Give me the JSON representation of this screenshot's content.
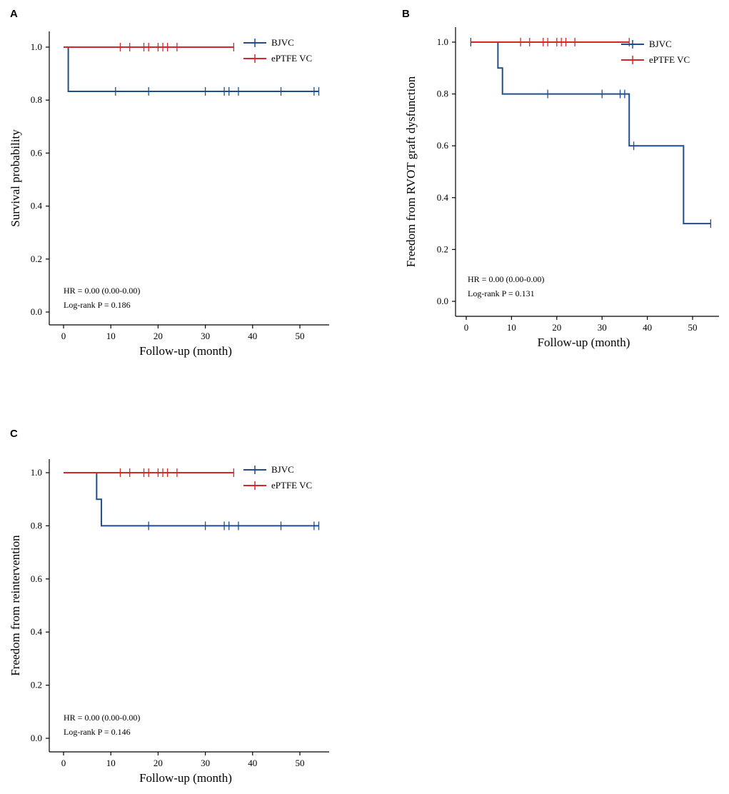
{
  "chart_data": [
    {
      "type": "line",
      "panel": "A",
      "xlabel": "Follow-up (month)",
      "ylabel": "Survival probability",
      "xlim": [
        0,
        55
      ],
      "ylim": [
        0,
        1
      ],
      "xticks": [
        0,
        10,
        20,
        30,
        40,
        50
      ],
      "yticks": [
        0.0,
        0.2,
        0.4,
        0.6,
        0.8,
        1.0
      ],
      "legend": [
        "BJVC",
        "ePTFE VC"
      ],
      "annotations": [
        "HR = 0.00 (0.00-0.00)",
        "Log-rank P = 0.186"
      ],
      "series": [
        {
          "name": "BJVC",
          "color": "#1f4e8c",
          "step": [
            [
              0,
              1.0
            ],
            [
              1,
              1.0
            ],
            [
              1,
              0.833
            ],
            [
              54,
              0.833
            ]
          ],
          "censor": [
            [
              11,
              0.833
            ],
            [
              18,
              0.833
            ],
            [
              30,
              0.833
            ],
            [
              34,
              0.833
            ],
            [
              35,
              0.833
            ],
            [
              37,
              0.833
            ],
            [
              46,
              0.833
            ],
            [
              53,
              0.833
            ],
            [
              54,
              0.833
            ]
          ]
        },
        {
          "name": "ePTFE VC",
          "color": "#d62728",
          "step": [
            [
              0,
              1.0
            ],
            [
              36,
              1.0
            ]
          ],
          "censor": [
            [
              12,
              1.0
            ],
            [
              14,
              1.0
            ],
            [
              17,
              1.0
            ],
            [
              18,
              1.0
            ],
            [
              20,
              1.0
            ],
            [
              21,
              1.0
            ],
            [
              22,
              1.0
            ],
            [
              24,
              1.0
            ],
            [
              36,
              1.0
            ]
          ]
        }
      ]
    },
    {
      "type": "line",
      "panel": "B",
      "xlabel": "Follow-up (month)",
      "ylabel": "Freedom from RVOT graft dysfunction",
      "xlim": [
        0,
        55
      ],
      "ylim": [
        0,
        1
      ],
      "xticks": [
        0,
        10,
        20,
        30,
        40,
        50
      ],
      "yticks": [
        0.0,
        0.2,
        0.4,
        0.6,
        0.8,
        1.0
      ],
      "legend": [
        "BJVC",
        "ePTFE VC"
      ],
      "annotations": [
        "HR = 0.00 (0.00-0.00)",
        "Log-rank P = 0.131"
      ],
      "series": [
        {
          "name": "BJVC",
          "color": "#1f4e8c",
          "step": [
            [
              1,
              1.0
            ],
            [
              7,
              1.0
            ],
            [
              7,
              0.9
            ],
            [
              8,
              0.9
            ],
            [
              8,
              0.8
            ],
            [
              36,
              0.8
            ],
            [
              36,
              0.6
            ],
            [
              48,
              0.6
            ],
            [
              48,
              0.3
            ],
            [
              54,
              0.3
            ]
          ],
          "censor": [
            [
              1,
              1.0
            ],
            [
              18,
              0.8
            ],
            [
              30,
              0.8
            ],
            [
              34,
              0.8
            ],
            [
              35,
              0.8
            ],
            [
              37,
              0.6
            ],
            [
              54,
              0.3
            ]
          ]
        },
        {
          "name": "ePTFE VC",
          "color": "#d62728",
          "step": [
            [
              1,
              1.0
            ],
            [
              36,
              1.0
            ]
          ],
          "censor": [
            [
              12,
              1.0
            ],
            [
              14,
              1.0
            ],
            [
              17,
              1.0
            ],
            [
              18,
              1.0
            ],
            [
              20,
              1.0
            ],
            [
              21,
              1.0
            ],
            [
              22,
              1.0
            ],
            [
              24,
              1.0
            ],
            [
              36,
              1.0
            ]
          ]
        }
      ]
    },
    {
      "type": "line",
      "panel": "C",
      "xlabel": "Follow-up (month)",
      "ylabel": "Freedom from reintervention",
      "xlim": [
        0,
        55
      ],
      "ylim": [
        0,
        1
      ],
      "xticks": [
        0,
        10,
        20,
        30,
        40,
        50
      ],
      "yticks": [
        0.0,
        0.2,
        0.4,
        0.6,
        0.8,
        1.0
      ],
      "legend": [
        "BJVC",
        "ePTFE VC"
      ],
      "annotations": [
        "HR = 0.00 (0.00-0.00)",
        "Log-rank P = 0.146"
      ],
      "series": [
        {
          "name": "BJVC",
          "color": "#1f4e8c",
          "step": [
            [
              0,
              1.0
            ],
            [
              7,
              1.0
            ],
            [
              7,
              0.9
            ],
            [
              8,
              0.9
            ],
            [
              8,
              0.8
            ],
            [
              54,
              0.8
            ]
          ],
          "censor": [
            [
              18,
              0.8
            ],
            [
              30,
              0.8
            ],
            [
              34,
              0.8
            ],
            [
              35,
              0.8
            ],
            [
              37,
              0.8
            ],
            [
              46,
              0.8
            ],
            [
              53,
              0.8
            ],
            [
              54,
              0.8
            ]
          ]
        },
        {
          "name": "ePTFE VC",
          "color": "#d62728",
          "step": [
            [
              0,
              1.0
            ],
            [
              36,
              1.0
            ]
          ],
          "censor": [
            [
              12,
              1.0
            ],
            [
              14,
              1.0
            ],
            [
              17,
              1.0
            ],
            [
              18,
              1.0
            ],
            [
              20,
              1.0
            ],
            [
              21,
              1.0
            ],
            [
              22,
              1.0
            ],
            [
              24,
              1.0
            ],
            [
              36,
              1.0
            ]
          ]
        }
      ]
    }
  ]
}
